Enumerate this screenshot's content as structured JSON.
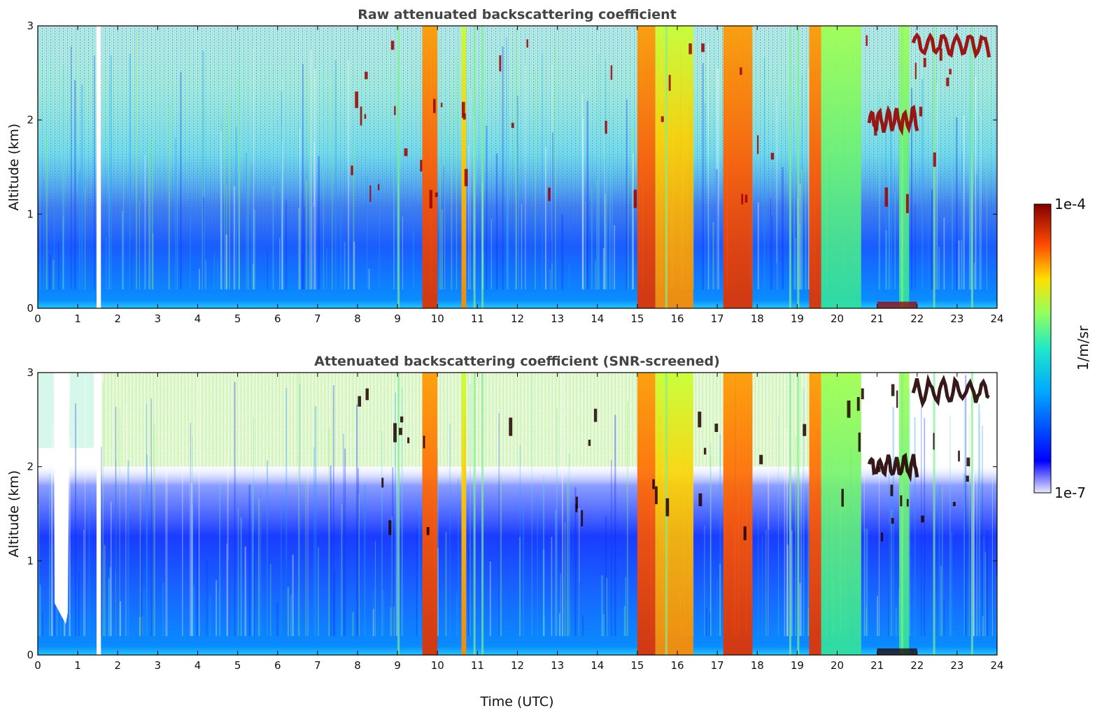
{
  "chart_data": [
    {
      "type": "heatmap",
      "title": "Raw attenuated backscattering coefficient",
      "xlabel": "",
      "ylabel": "Altitude (km)",
      "xlim": [
        0,
        24
      ],
      "ylim": [
        0,
        3
      ],
      "xticks": [
        "0",
        "1",
        "2",
        "3",
        "4",
        "5",
        "6",
        "7",
        "8",
        "9",
        "10",
        "11",
        "12",
        "13",
        "14",
        "15",
        "16",
        "17",
        "18",
        "19",
        "20",
        "21",
        "22",
        "23",
        "24"
      ],
      "yticks": [
        "0",
        "1",
        "2",
        "3"
      ],
      "color_scale": "log jet, 1e-7 to 1e-4 1/m/sr",
      "data_gaps_utc": [
        [
          1.47,
          1.58
        ]
      ],
      "precipitation_columns_utc": [
        {
          "t0": 9.62,
          "t1": 10.0,
          "intensity": 0.88
        },
        {
          "t0": 10.6,
          "t1": 10.72,
          "intensity": 0.72
        },
        {
          "t0": 15.0,
          "t1": 15.45,
          "intensity": 0.82
        },
        {
          "t0": 15.45,
          "t1": 16.4,
          "intensity": 0.62
        },
        {
          "t0": 17.15,
          "t1": 17.88,
          "intensity": 0.84
        },
        {
          "t0": 19.3,
          "t1": 19.6,
          "intensity": 0.82
        },
        {
          "t0": 19.6,
          "t1": 20.6,
          "intensity": 0.55
        },
        {
          "t0": 21.55,
          "t1": 21.8,
          "intensity": 0.5
        }
      ],
      "cloud_layers": [
        {
          "t0": 20.8,
          "t1": 22.0,
          "altitude_km": 2.0
        },
        {
          "t0": 21.9,
          "t1": 23.8,
          "altitude_km": 2.8
        }
      ]
    },
    {
      "type": "heatmap",
      "title": "Attenuated backscattering coefficient (SNR-screened)",
      "xlabel": "Time (UTC)",
      "ylabel": "Altitude (km)",
      "xlim": [
        0,
        24
      ],
      "ylim": [
        0,
        3
      ],
      "xticks": [
        "0",
        "1",
        "2",
        "3",
        "4",
        "5",
        "6",
        "7",
        "8",
        "9",
        "10",
        "11",
        "12",
        "13",
        "14",
        "15",
        "16",
        "17",
        "18",
        "19",
        "20",
        "21",
        "22",
        "23",
        "24"
      ],
      "yticks": [
        "0",
        "1",
        "2",
        "3"
      ],
      "color_scale": "log jet, 1e-7 to 1e-4 1/m/sr",
      "data_gaps_utc": [
        [
          0.4,
          0.8
        ],
        [
          1.47,
          1.58
        ]
      ],
      "screened_above_km": 2.0
    }
  ],
  "colorbar": {
    "label": "1/m/sr",
    "max_label": "1e-4",
    "min_label": "1e-7"
  }
}
